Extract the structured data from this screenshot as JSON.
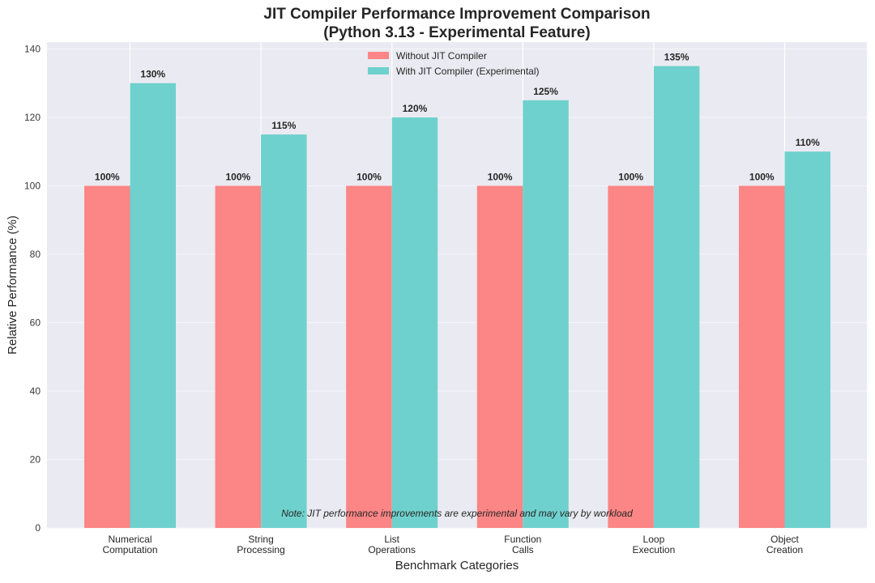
{
  "chart_data": {
    "type": "bar",
    "title": "JIT Compiler Performance Improvement Comparison",
    "subtitle": "(Python 3.13 - Experimental Feature)",
    "xlabel": "Benchmark Categories",
    "ylabel": "Relative Performance (%)",
    "ylim": [
      0,
      142
    ],
    "yticks": [
      0,
      20,
      40,
      60,
      80,
      100,
      120,
      140
    ],
    "categories": [
      [
        "Numerical",
        "Computation"
      ],
      [
        "String",
        "Processing"
      ],
      [
        "List",
        "Operations"
      ],
      [
        "Function",
        "Calls"
      ],
      [
        "Loop",
        "Execution"
      ],
      [
        "Object",
        "Creation"
      ]
    ],
    "series": [
      {
        "name": "Without JIT Compiler",
        "values": [
          100,
          100,
          100,
          100,
          100,
          100
        ],
        "color": "#fc8585",
        "labels": [
          "100%",
          "100%",
          "100%",
          "100%",
          "100%",
          "100%"
        ]
      },
      {
        "name": "With JIT Compiler (Experimental)",
        "values": [
          130,
          115,
          120,
          125,
          135,
          110
        ],
        "color": "#6fd1cd",
        "labels": [
          "130%",
          "115%",
          "120%",
          "125%",
          "135%",
          "110%"
        ]
      }
    ],
    "legend": "top-center",
    "grid": true,
    "background": "#eaeaf2",
    "annotation": "Note: JIT performance improvements are experimental and may vary by workload"
  }
}
